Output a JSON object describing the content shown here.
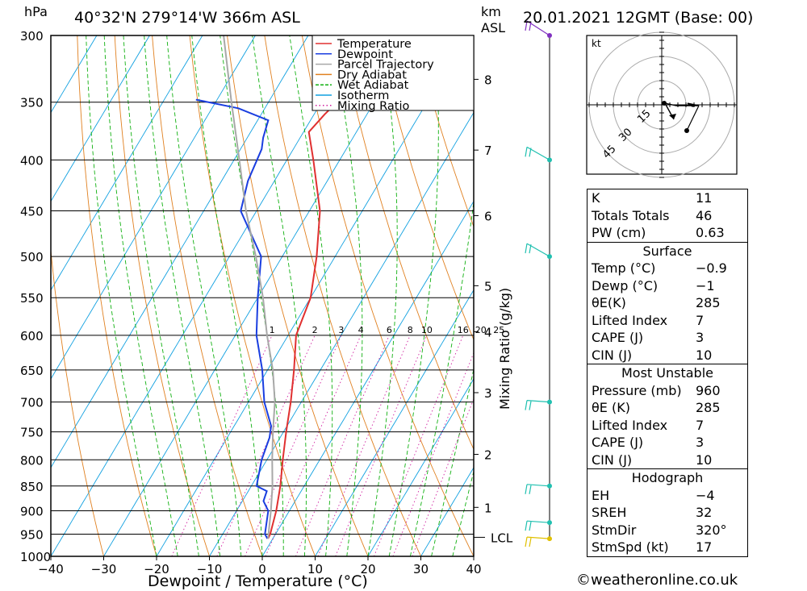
{
  "header": {
    "hpa_label": "hPa",
    "location": "40°32'N  279°14'W  366m  ASL",
    "km_label": "km",
    "asl_label": "ASL",
    "datetime": "20.01.2021  12GMT  (Base: 00)"
  },
  "chart_data": {
    "type": "line",
    "title": "40°32'N  279°14'W  366m  ASL",
    "xlabel": "Dewpoint / Temperature (°C)",
    "ylabel": "hPa",
    "xlim": [
      -40,
      40
    ],
    "ylim": [
      1000,
      300
    ],
    "x_ticks": [
      "−40",
      "−30",
      "−20",
      "−10",
      "0",
      "10",
      "20",
      "30",
      "40"
    ],
    "y_ticks": [
      "300",
      "350",
      "400",
      "450",
      "500",
      "550",
      "600",
      "650",
      "700",
      "750",
      "800",
      "850",
      "900",
      "950",
      "1000"
    ],
    "km_ticks": [
      {
        "km": "8",
        "p": 332
      },
      {
        "km": "7",
        "p": 391
      },
      {
        "km": "6",
        "p": 455
      },
      {
        "km": "5",
        "p": 535
      },
      {
        "km": "4",
        "p": 595
      },
      {
        "km": "3",
        "p": 685
      },
      {
        "km": "2",
        "p": 790
      },
      {
        "km": "1",
        "p": 893
      }
    ],
    "lcl_label": "LCL",
    "lcl_p": 957,
    "mixing_ratio_axis_label": "Mixing Ratio (g/kg)",
    "mixing_ratio_labels": [
      "1",
      "2",
      "3",
      "4",
      "6",
      "8",
      "10",
      "16",
      "20",
      "25"
    ],
    "legend": [
      "Temperature",
      "Dewpoint",
      "Parcel Trajectory",
      "Dry Adiabat",
      "Wet Adiabat",
      "Isotherm",
      "Mixing Ratio"
    ],
    "legend_position": "top-right",
    "series": [
      {
        "name": "Temperature",
        "color": "#e03030",
        "points": [
          [
            960,
            -0.9
          ],
          [
            950,
            -1.0
          ],
          [
            900,
            -2.5
          ],
          [
            850,
            -4.5
          ],
          [
            800,
            -7
          ],
          [
            750,
            -9.5
          ],
          [
            700,
            -12
          ],
          [
            650,
            -15
          ],
          [
            600,
            -18.5
          ],
          [
            550,
            -20
          ],
          [
            500,
            -23.5
          ],
          [
            450,
            -28
          ],
          [
            400,
            -35
          ],
          [
            375,
            -39
          ],
          [
            360,
            -38
          ],
          [
            345,
            -36.5
          ],
          [
            330,
            -35
          ],
          [
            315,
            -34
          ],
          [
            300,
            -33
          ]
        ]
      },
      {
        "name": "Dewpoint",
        "color": "#1a3ee0",
        "points": [
          [
            960,
            -1
          ],
          [
            950,
            -2
          ],
          [
            900,
            -4
          ],
          [
            880,
            -6
          ],
          [
            860,
            -6.5
          ],
          [
            850,
            -9
          ],
          [
            800,
            -11
          ],
          [
            760,
            -12
          ],
          [
            740,
            -13
          ],
          [
            700,
            -17
          ],
          [
            650,
            -21
          ],
          [
            600,
            -26
          ],
          [
            550,
            -30
          ],
          [
            500,
            -34
          ],
          [
            450,
            -43
          ],
          [
            420,
            -45
          ],
          [
            390,
            -46
          ],
          [
            380,
            -47
          ],
          [
            365,
            -48
          ],
          [
            355,
            -55
          ],
          [
            348,
            -64
          ]
        ]
      },
      {
        "name": "Parcel Trajectory",
        "color": "#a8a8a8",
        "points": [
          [
            960,
            -0.9
          ],
          [
            900,
            -3.5
          ],
          [
            850,
            -6
          ],
          [
            800,
            -9
          ],
          [
            750,
            -12
          ],
          [
            700,
            -15
          ],
          [
            650,
            -19
          ],
          [
            600,
            -24
          ],
          [
            550,
            -29
          ],
          [
            500,
            -35
          ],
          [
            450,
            -42
          ],
          [
            400,
            -49
          ],
          [
            350,
            -57
          ],
          [
            300,
            -66
          ]
        ]
      }
    ],
    "grid": true,
    "colors": {
      "temperature": "#e03030",
      "dewpoint": "#1a3ee0",
      "parcel": "#a8a8a8",
      "dry_adiabat": "#e08020",
      "wet_adiabat": "#10b010",
      "isotherm": "#10a0e0",
      "mixing_ratio": "#d020a0",
      "wind": "#20c0b0"
    }
  },
  "hodograph": {
    "unit_label": "kt",
    "ring_labels": [
      "15",
      "30",
      "45"
    ]
  },
  "indices": {
    "k_label": "K",
    "k_value": "11",
    "tt_label": "Totals Totals",
    "tt_value": "46",
    "pw_label": "PW (cm)",
    "pw_value": "0.63"
  },
  "surface": {
    "title": "Surface",
    "rows": [
      {
        "label": "Temp (°C)",
        "value": "−0.9"
      },
      {
        "label": "Dewp (°C)",
        "value": "−1"
      },
      {
        "label": "θE(K)",
        "value": "285"
      },
      {
        "label": "Lifted Index",
        "value": "7"
      },
      {
        "label": "CAPE (J)",
        "value": "3"
      },
      {
        "label": "CIN (J)",
        "value": "10"
      }
    ]
  },
  "most_unstable": {
    "title": "Most Unstable",
    "rows": [
      {
        "label": "Pressure (mb)",
        "value": "960"
      },
      {
        "label": "θE (K)",
        "value": "285"
      },
      {
        "label": "Lifted Index",
        "value": "7"
      },
      {
        "label": "CAPE (J)",
        "value": "3"
      },
      {
        "label": "CIN (J)",
        "value": "10"
      }
    ]
  },
  "hodograph_table": {
    "title": "Hodograph",
    "rows": [
      {
        "label": "EH",
        "value": "−4"
      },
      {
        "label": "SREH",
        "value": "32"
      },
      {
        "label": "StmDir",
        "value": "320°"
      },
      {
        "label": "StmSpd (kt)",
        "value": "17"
      }
    ]
  },
  "footer": {
    "credit": "©weatheronline.co.uk"
  }
}
